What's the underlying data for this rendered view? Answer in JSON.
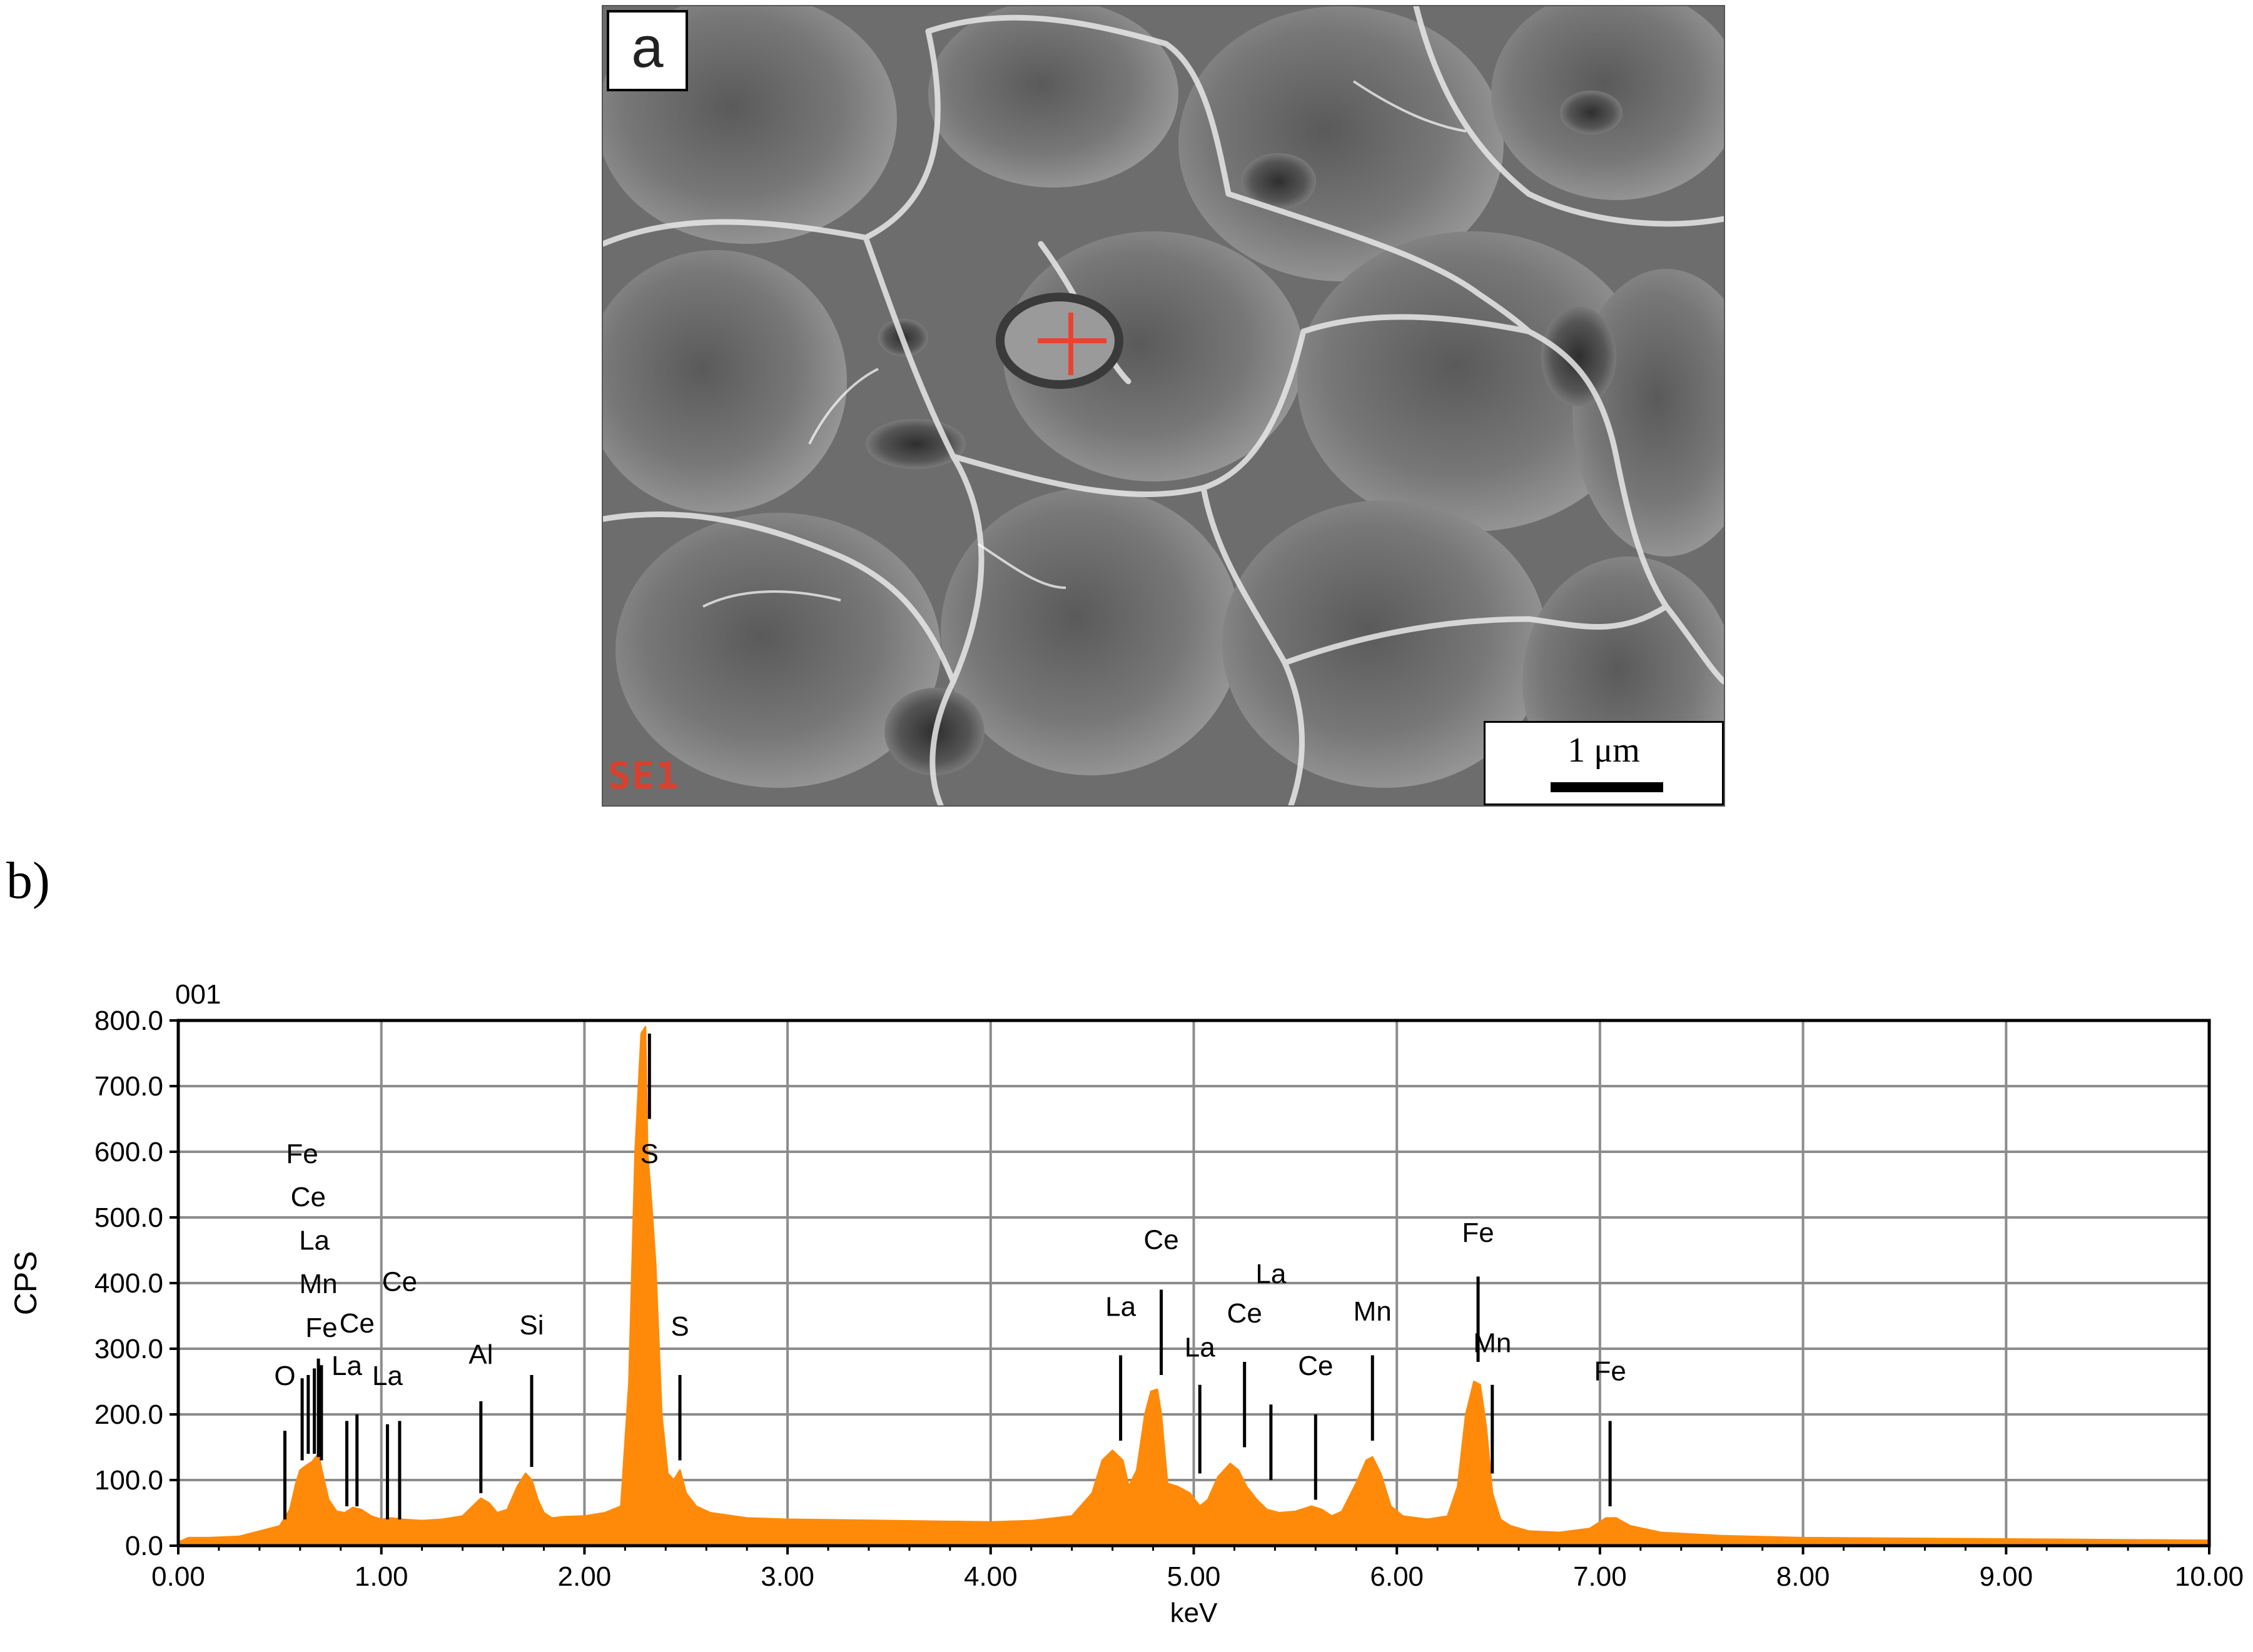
{
  "panel_a": {
    "label": "a",
    "detector": "SE1",
    "scale_bar": "1 μm"
  },
  "panel_b": {
    "label": "b)"
  },
  "chart_data": {
    "type": "area",
    "spectrum_id": "001",
    "xlabel": "keV",
    "ylabel": "CPS",
    "xlim": [
      0,
      10
    ],
    "ylim": [
      0,
      800
    ],
    "grid": true,
    "x_ticks": [
      0,
      1,
      2,
      3,
      4,
      5,
      6,
      7,
      8,
      9,
      10
    ],
    "x_tick_labels": [
      "0.00",
      "1.00",
      "2.00",
      "3.00",
      "4.00",
      "5.00",
      "6.00",
      "7.00",
      "8.00",
      "9.00",
      "10.00"
    ],
    "y_ticks": [
      0,
      100,
      200,
      300,
      400,
      500,
      600,
      700,
      800
    ],
    "y_tick_labels": [
      "0.0",
      "100.0",
      "200.0",
      "300.0",
      "400.0",
      "500.0",
      "600.0",
      "700.0",
      "800.0"
    ],
    "fill_color": "#ff8a0a",
    "series": [
      {
        "x": [
          0.0,
          0.05,
          0.15,
          0.3,
          0.4,
          0.5,
          0.55,
          0.58,
          0.6,
          0.63,
          0.66,
          0.69,
          0.71,
          0.74,
          0.78,
          0.82,
          0.86,
          0.9,
          0.95,
          1.0,
          1.05,
          1.1,
          1.2,
          1.3,
          1.4,
          1.45,
          1.49,
          1.53,
          1.57,
          1.62,
          1.67,
          1.71,
          1.74,
          1.77,
          1.8,
          1.84,
          1.9,
          2.0,
          2.1,
          2.18,
          2.22,
          2.25,
          2.28,
          2.3,
          2.31,
          2.33,
          2.35,
          2.38,
          2.41,
          2.44,
          2.47,
          2.5,
          2.55,
          2.62,
          2.8,
          3.0,
          3.5,
          4.0,
          4.2,
          4.4,
          4.5,
          4.55,
          4.6,
          4.65,
          4.68,
          4.72,
          4.76,
          4.79,
          4.82,
          4.84,
          4.87,
          4.92,
          4.98,
          5.03,
          5.07,
          5.12,
          5.18,
          5.22,
          5.26,
          5.31,
          5.36,
          5.42,
          5.5,
          5.58,
          5.63,
          5.68,
          5.73,
          5.8,
          5.85,
          5.88,
          5.92,
          5.97,
          6.03,
          6.15,
          6.25,
          6.3,
          6.34,
          6.38,
          6.41,
          6.44,
          6.47,
          6.51,
          6.56,
          6.65,
          6.8,
          6.95,
          7.03,
          7.08,
          7.15,
          7.3,
          7.6,
          8.0,
          9.0,
          10.0
        ],
        "y": [
          5,
          12,
          12,
          14,
          22,
          30,
          55,
          95,
          115,
          122,
          128,
          140,
          110,
          70,
          52,
          50,
          58,
          55,
          45,
          40,
          42,
          40,
          38,
          40,
          45,
          60,
          72,
          65,
          50,
          55,
          90,
          110,
          100,
          70,
          50,
          42,
          44,
          45,
          50,
          60,
          250,
          600,
          780,
          790,
          600,
          520,
          430,
          200,
          110,
          100,
          115,
          80,
          60,
          50,
          42,
          40,
          38,
          36,
          38,
          45,
          80,
          130,
          145,
          130,
          90,
          115,
          200,
          235,
          238,
          200,
          95,
          90,
          80,
          60,
          70,
          105,
          125,
          115,
          90,
          70,
          55,
          50,
          52,
          60,
          55,
          45,
          52,
          95,
          130,
          135,
          110,
          60,
          45,
          40,
          45,
          90,
          200,
          250,
          245,
          180,
          80,
          40,
          30,
          22,
          20,
          26,
          42,
          42,
          30,
          20,
          15,
          12,
          10,
          8
        ]
      }
    ],
    "peak_labels": [
      {
        "text": "O",
        "x": 0.525,
        "label_y": 245,
        "line_top": 175,
        "line_bottom": 40
      },
      {
        "text": "Fe",
        "x": 0.61,
        "label_y": 583,
        "line_top": 255,
        "line_bottom": 130
      },
      {
        "text": "Ce",
        "x": 0.64,
        "label_y": 517,
        "line_top": 260,
        "line_bottom": 140
      },
      {
        "text": "La",
        "x": 0.67,
        "label_y": 451,
        "line_top": 270,
        "line_bottom": 140
      },
      {
        "text": "Mn",
        "x": 0.69,
        "label_y": 385,
        "line_top": 285,
        "line_bottom": 135
      },
      {
        "text": "Fe",
        "x": 0.705,
        "label_y": 318,
        "line_top": 275,
        "line_bottom": 130
      },
      {
        "text": "La",
        "x": 0.83,
        "label_y": 260,
        "line_top": 190,
        "line_bottom": 60
      },
      {
        "text": "Ce",
        "x": 0.88,
        "label_y": 325,
        "line_top": 200,
        "line_bottom": 60
      },
      {
        "text": "La",
        "x": 1.03,
        "label_y": 245,
        "line_top": 185,
        "line_bottom": 40
      },
      {
        "text": "Ce",
        "x": 1.09,
        "label_y": 388,
        "line_top": 190,
        "line_bottom": 40
      },
      {
        "text": "Al",
        "x": 1.49,
        "label_y": 277,
        "line_top": 220,
        "line_bottom": 80
      },
      {
        "text": "Si",
        "x": 1.74,
        "label_y": 322,
        "line_top": 260,
        "line_bottom": 120
      },
      {
        "text": "S",
        "x": 2.32,
        "label_y": 583,
        "line_top": 780,
        "line_bottom": 650
      },
      {
        "text": "S",
        "x": 2.47,
        "label_y": 320,
        "line_top": 260,
        "line_bottom": 130
      },
      {
        "text": "La",
        "x": 4.64,
        "label_y": 350,
        "line_top": 290,
        "line_bottom": 160
      },
      {
        "text": "Ce",
        "x": 4.84,
        "label_y": 452,
        "line_top": 390,
        "line_bottom": 260
      },
      {
        "text": "La",
        "x": 5.03,
        "label_y": 288,
        "line_top": 245,
        "line_bottom": 110
      },
      {
        "text": "Ce",
        "x": 5.25,
        "label_y": 340,
        "line_top": 280,
        "line_bottom": 150
      },
      {
        "text": "La",
        "x": 5.38,
        "label_y": 400,
        "line_top": 215,
        "line_bottom": 100
      },
      {
        "text": "Ce",
        "x": 5.6,
        "label_y": 260,
        "line_top": 200,
        "line_bottom": 70
      },
      {
        "text": "Mn",
        "x": 5.88,
        "label_y": 343,
        "line_top": 290,
        "line_bottom": 160
      },
      {
        "text": "Fe",
        "x": 6.4,
        "label_y": 463,
        "line_top": 410,
        "line_bottom": 280
      },
      {
        "text": "Mn",
        "x": 6.47,
        "label_y": 295,
        "line_top": 245,
        "line_bottom": 110
      },
      {
        "text": "Fe",
        "x": 7.05,
        "label_y": 252,
        "line_top": 190,
        "line_bottom": 60
      }
    ]
  }
}
